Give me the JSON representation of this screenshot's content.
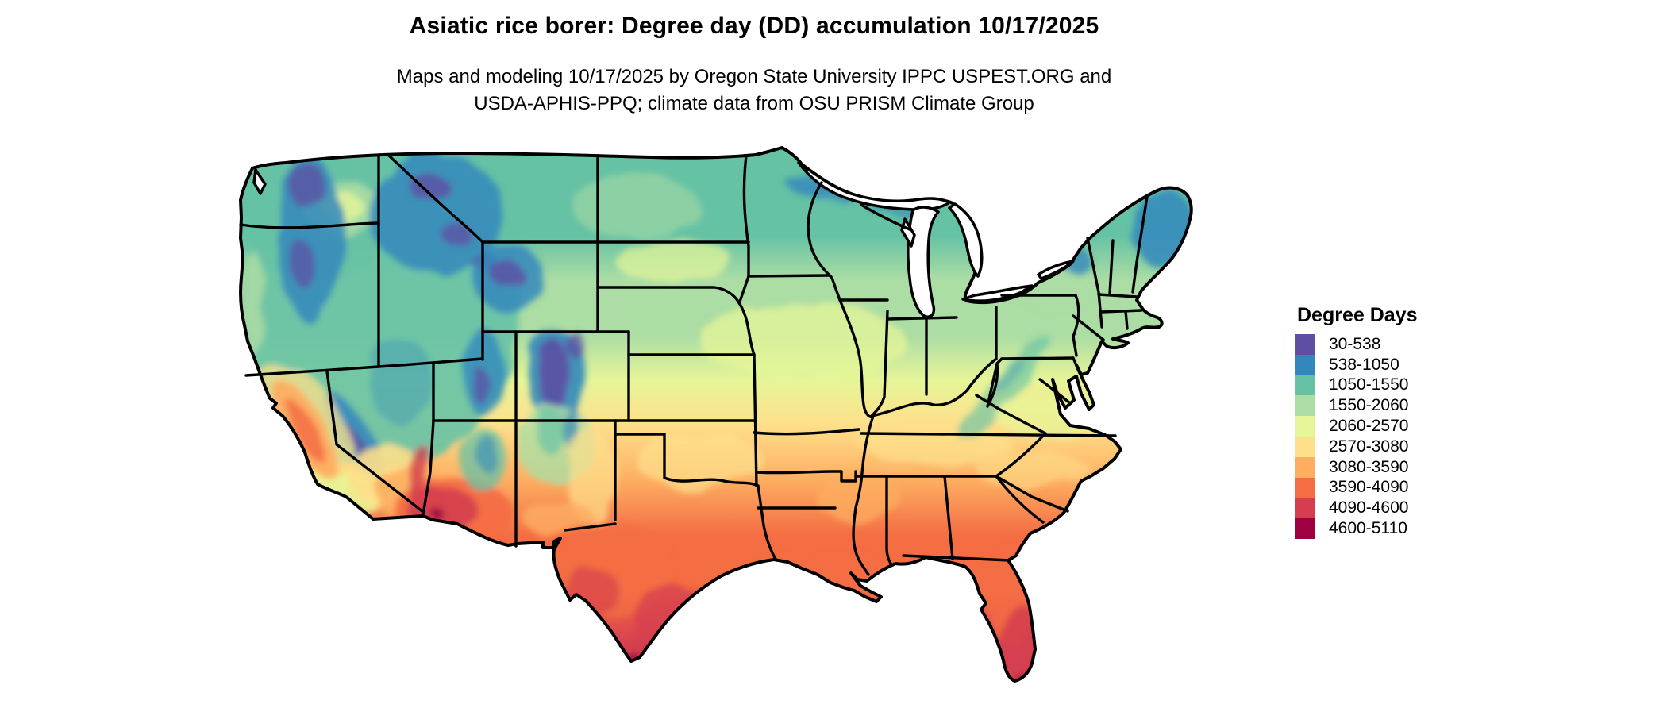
{
  "header": {
    "title": "Asiatic rice borer: Degree day (DD) accumulation 10/17/2025",
    "subtitle": "Maps and modeling 10/17/2025 by Oregon State University IPPC USPEST.ORG and\nUSDA-APHIS-PPQ; climate data from OSU PRISM Climate Group"
  },
  "map": {
    "description": "Contiguous United States raster map shaded by accumulated degree days with black state boundaries"
  },
  "legend": {
    "title": "Degree Days",
    "items": [
      {
        "label": "30-538",
        "color": "#5e4fa2"
      },
      {
        "label": "538-1050",
        "color": "#3288bd"
      },
      {
        "label": "1050-1550",
        "color": "#66c2a5"
      },
      {
        "label": "1550-2060",
        "color": "#abdda4"
      },
      {
        "label": "2060-2570",
        "color": "#e6f598"
      },
      {
        "label": "2570-3080",
        "color": "#fee08b"
      },
      {
        "label": "3080-3590",
        "color": "#fdae61"
      },
      {
        "label": "3590-4090",
        "color": "#f46d43"
      },
      {
        "label": "4090-4600",
        "color": "#d53e4f"
      },
      {
        "label": "4600-5110",
        "color": "#9e0142"
      }
    ]
  }
}
